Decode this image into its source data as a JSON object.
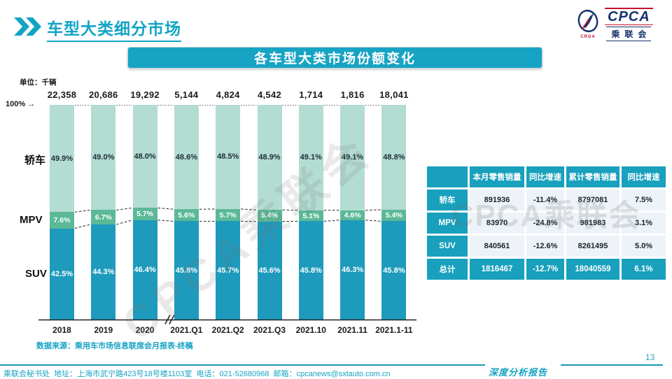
{
  "colors": {
    "accent": "#17a3c4",
    "title": "#12a4c4",
    "table_teal": "#18a0bd",
    "table_cell_bg": "#edf3f8",
    "sedan": "#b3dcd3",
    "mpv": "#5bb997",
    "suv": "#1d9abc",
    "axis": "#222222",
    "logo_navy": "#16316e",
    "logo_red": "#c8102e"
  },
  "header": {
    "title": "车型大类细分市场"
  },
  "logo": {
    "cpca": "CPCA",
    "cn": "乘联会",
    "crda": "CRDA"
  },
  "banner": {
    "title": "各车型大类市场份额变化"
  },
  "chart_data": {
    "type": "stacked-bar-100",
    "title": "各车型大类市场份额变化",
    "unit_label": "单位：千辆",
    "y100_label": "100%",
    "y_arrow": "→",
    "grid": false,
    "axis_break_after_index": 2,
    "categories": [
      "2018",
      "2019",
      "2020",
      "2021.Q1",
      "2021.Q2",
      "2021.Q3",
      "2021.10",
      "2021.11",
      "2021.1-11"
    ],
    "totals": [
      "22,358",
      "20,686",
      "19,292",
      "5,144",
      "4,824",
      "4,542",
      "1,714",
      "1,816",
      "18,041"
    ],
    "series": [
      {
        "name": "轿车",
        "color": "#b3dcd3",
        "values": [
          49.9,
          49.0,
          48.0,
          48.6,
          48.5,
          48.9,
          49.1,
          49.1,
          48.8
        ],
        "labels": [
          "49.9%",
          "49.0%",
          "48.0%",
          "48.6%",
          "48.5%",
          "48.9%",
          "49.1%",
          "49.1%",
          "48.8%"
        ]
      },
      {
        "name": "MPV",
        "color": "#5bb997",
        "values": [
          7.6,
          6.7,
          5.7,
          5.6,
          5.7,
          5.4,
          5.1,
          4.6,
          5.4
        ],
        "labels": [
          "7.6%",
          "6.7%",
          "5.7%",
          "5.6%",
          "5.7%",
          "5.4%",
          "5.1%",
          "4.6%",
          "5.4%"
        ]
      },
      {
        "name": "SUV",
        "color": "#1d9abc",
        "values": [
          42.5,
          44.3,
          46.4,
          45.8,
          45.7,
          45.6,
          45.8,
          46.3,
          45.8
        ],
        "labels": [
          "42.5%",
          "44.3%",
          "46.4%",
          "45.8%",
          "45.7%",
          "45.6%",
          "45.8%",
          "46.3%",
          "45.8%"
        ]
      }
    ]
  },
  "table": {
    "headers": [
      "",
      "本月零售销量",
      "同比增速",
      "累计零售销量",
      "同比增速"
    ],
    "rows": [
      [
        "轿车",
        "891936",
        "-11.4%",
        "8797081",
        "7.5%"
      ],
      [
        "MPV",
        "83970",
        "-24.8%",
        "981983",
        "3.1%"
      ],
      [
        "SUV",
        "840561",
        "-12.6%",
        "8261495",
        "5.0%"
      ],
      [
        "总计",
        "1816467",
        "-12.7%",
        "18040559",
        "6.1%"
      ]
    ],
    "total_row_index": 3
  },
  "watermark": {
    "text": "CPCA乘联会"
  },
  "source_note": "数据来源：乘用车市场信息联席会月报表-终稿",
  "footer": {
    "info": "乘联会秘书处  地址：上海市武宁路423号18号楼1103室  电话：021-52680968  邮箱：cpcanews@sxtauto.com.cn",
    "report_label": "深度分析报告",
    "page_number": "13"
  }
}
